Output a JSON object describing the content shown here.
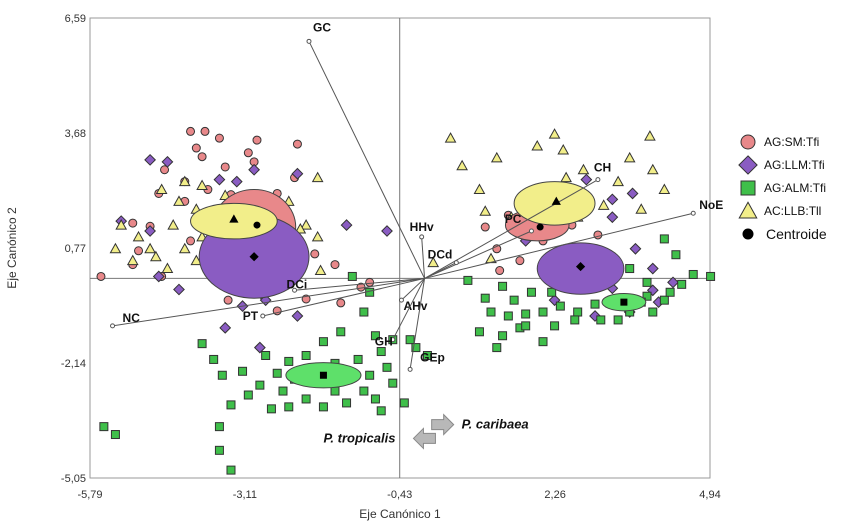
{
  "chart_data": {
    "type": "scatter",
    "xlabel": "Eje Canónico 1",
    "ylabel": "Eje Canónico 2",
    "xlim": [
      -5.79,
      4.94
    ],
    "ylim": [
      -5.05,
      6.59
    ],
    "xticks": [
      "-5,79",
      "-3,11",
      "-0,43",
      "2,26",
      "4,94"
    ],
    "yticks": [
      "6,59",
      "3,68",
      "0,77",
      "-2,14",
      "-5,05"
    ],
    "xtick_values": [
      -5.79,
      -3.11,
      -0.43,
      2.26,
      4.94
    ],
    "ytick_values": [
      6.59,
      3.68,
      0.77,
      -2.14,
      -5.05
    ],
    "grid": false,
    "legend_position": "right",
    "origin_lines": {
      "x": -0.43,
      "y": 0
    },
    "series": [
      {
        "name": "AG:SM:Tfi",
        "marker": "circle",
        "color": "#e8888a",
        "points": [
          [
            -4.05,
            3.72
          ],
          [
            -3.8,
            3.72
          ],
          [
            -3.55,
            3.55
          ],
          [
            -3.85,
            3.08
          ],
          [
            -3.05,
            3.18
          ],
          [
            -3.45,
            2.82
          ],
          [
            -2.9,
            3.5
          ],
          [
            -2.2,
            3.4
          ],
          [
            -4.5,
            2.75
          ],
          [
            -4.15,
            2.45
          ],
          [
            -3.75,
            2.25
          ],
          [
            -4.15,
            1.95
          ],
          [
            -3.35,
            2.12
          ],
          [
            -2.55,
            2.15
          ],
          [
            -3.25,
            1.6
          ],
          [
            -2.5,
            1.15
          ],
          [
            -5.05,
            1.4
          ],
          [
            -4.75,
            1.32
          ],
          [
            -4.05,
            0.95
          ],
          [
            -3.65,
            0.8
          ],
          [
            -2.7,
            0.45
          ],
          [
            -1.9,
            0.62
          ],
          [
            -1.55,
            0.35
          ],
          [
            -5.6,
            0.05
          ],
          [
            -5.05,
            0.35
          ],
          [
            -4.55,
            0.05
          ],
          [
            -4.95,
            0.7
          ],
          [
            -3.05,
            -0.15
          ],
          [
            -2.8,
            -0.42
          ],
          [
            -2.55,
            -0.82
          ],
          [
            -2.05,
            -0.52
          ],
          [
            -1.45,
            -0.62
          ],
          [
            -1.1,
            -0.22
          ],
          [
            -2.55,
            -0.18
          ],
          [
            -3.4,
            -0.55
          ],
          [
            -0.95,
            -0.1
          ],
          [
            -2.25,
            2.55
          ],
          [
            -4.6,
            2.15
          ],
          [
            -3.95,
            3.3
          ],
          [
            -2.95,
            2.95
          ],
          [
            -3.1,
            1.35
          ],
          [
            1.45,
            1.6
          ],
          [
            1.8,
            1.2
          ],
          [
            2.05,
            0.95
          ],
          [
            2.55,
            1.35
          ],
          [
            3.0,
            1.1
          ],
          [
            2.25,
            2.3
          ],
          [
            2.75,
            2.05
          ],
          [
            1.25,
            0.75
          ],
          [
            1.65,
            0.45
          ],
          [
            2.05,
            0.2
          ],
          [
            1.3,
            0.2
          ],
          [
            1.05,
            1.3
          ],
          [
            2.35,
            0.7
          ]
        ]
      },
      {
        "name": "AG:LLM:Tfi",
        "marker": "diamond",
        "color": "#8a5cc2",
        "points": [
          [
            -4.75,
            3.0
          ],
          [
            -4.45,
            2.95
          ],
          [
            -3.55,
            2.5
          ],
          [
            -3.25,
            2.45
          ],
          [
            -2.95,
            2.75
          ],
          [
            -2.2,
            2.65
          ],
          [
            -3.5,
            1.6
          ],
          [
            -3.25,
            1.3
          ],
          [
            -2.7,
            1.05
          ],
          [
            -5.25,
            1.45
          ],
          [
            -4.75,
            1.2
          ],
          [
            -3.8,
            0.45
          ],
          [
            -2.35,
            0.85
          ],
          [
            -4.6,
            0.05
          ],
          [
            -4.25,
            -0.28
          ],
          [
            -2.75,
            -0.55
          ],
          [
            -3.45,
            -1.25
          ],
          [
            -2.85,
            -1.75
          ],
          [
            -3.15,
            -0.7
          ],
          [
            -2.2,
            -0.95
          ],
          [
            -1.35,
            1.35
          ],
          [
            -0.65,
            1.2
          ],
          [
            1.6,
            1.25
          ],
          [
            1.95,
            1.75
          ],
          [
            2.8,
            2.5
          ],
          [
            3.25,
            2.0
          ],
          [
            3.6,
            2.15
          ],
          [
            3.25,
            1.55
          ],
          [
            3.05,
            0.35
          ],
          [
            3.65,
            0.75
          ],
          [
            3.95,
            0.25
          ],
          [
            4.3,
            -0.1
          ],
          [
            3.95,
            -0.3
          ],
          [
            3.45,
            -0.55
          ],
          [
            2.95,
            -0.95
          ],
          [
            4.05,
            -0.6
          ],
          [
            3.55,
            -0.85
          ],
          [
            1.75,
            0.95
          ],
          [
            3.25,
            -0.25
          ],
          [
            2.25,
            -0.55
          ]
        ]
      },
      {
        "name": "AG:ALM:Tfi",
        "marker": "square",
        "color": "#3fbf4a",
        "points": [
          [
            -1.25,
            0.05
          ],
          [
            -0.95,
            -0.35
          ],
          [
            -1.05,
            -0.85
          ],
          [
            -0.85,
            -1.45
          ],
          [
            -1.45,
            -1.35
          ],
          [
            -1.75,
            -1.6
          ],
          [
            -2.05,
            -1.95
          ],
          [
            -1.55,
            -2.15
          ],
          [
            -1.15,
            -2.05
          ],
          [
            -0.75,
            -1.85
          ],
          [
            -0.55,
            -1.55
          ],
          [
            -0.25,
            -1.55
          ],
          [
            -0.15,
            -1.75
          ],
          [
            0.05,
            -1.95
          ],
          [
            -0.65,
            -2.25
          ],
          [
            -0.95,
            -2.45
          ],
          [
            -0.55,
            -2.65
          ],
          [
            -1.35,
            -2.55
          ],
          [
            -1.55,
            -2.85
          ],
          [
            -1.95,
            -2.35
          ],
          [
            -2.25,
            -2.55
          ],
          [
            -2.55,
            -2.4
          ],
          [
            -2.85,
            -2.7
          ],
          [
            -3.15,
            -2.35
          ],
          [
            -3.5,
            -2.45
          ],
          [
            -3.65,
            -2.05
          ],
          [
            -2.75,
            -1.95
          ],
          [
            -2.45,
            -2.85
          ],
          [
            -2.05,
            -3.05
          ],
          [
            -1.75,
            -3.25
          ],
          [
            -1.35,
            -3.15
          ],
          [
            -0.85,
            -3.05
          ],
          [
            -1.05,
            -2.85
          ],
          [
            -2.35,
            -3.25
          ],
          [
            -2.65,
            -3.3
          ],
          [
            -3.35,
            -3.2
          ],
          [
            -3.05,
            -2.95
          ],
          [
            -0.75,
            -3.35
          ],
          [
            -1.95,
            -2.6
          ],
          [
            -2.35,
            -2.1
          ],
          [
            -5.55,
            -3.75
          ],
          [
            -5.35,
            -3.95
          ],
          [
            -3.55,
            -4.35
          ],
          [
            -3.35,
            -4.85
          ],
          [
            -3.55,
            -3.75
          ],
          [
            -0.35,
            -3.15
          ],
          [
            -3.85,
            -1.65
          ],
          [
            4.15,
            1.0
          ],
          [
            4.35,
            0.6
          ],
          [
            4.65,
            0.1
          ],
          [
            4.45,
            -0.15
          ],
          [
            4.95,
            0.05
          ],
          [
            3.85,
            -0.1
          ],
          [
            3.55,
            -0.85
          ],
          [
            3.35,
            -1.05
          ],
          [
            3.05,
            -1.05
          ],
          [
            2.65,
            -0.85
          ],
          [
            2.35,
            -0.7
          ],
          [
            2.05,
            -0.85
          ],
          [
            1.75,
            -0.9
          ],
          [
            1.45,
            -0.95
          ],
          [
            1.15,
            -0.85
          ],
          [
            1.55,
            -0.55
          ],
          [
            1.85,
            -0.35
          ],
          [
            2.2,
            -0.35
          ],
          [
            2.55,
            -0.25
          ],
          [
            3.85,
            -0.45
          ],
          [
            4.15,
            -0.55
          ],
          [
            1.35,
            -1.45
          ],
          [
            1.65,
            -1.25
          ],
          [
            2.25,
            -1.2
          ],
          [
            2.6,
            -1.05
          ],
          [
            3.25,
            -0.55
          ],
          [
            2.05,
            -1.6
          ],
          [
            1.25,
            -1.75
          ],
          [
            0.95,
            -1.35
          ],
          [
            1.05,
            -0.5
          ],
          [
            1.35,
            -0.2
          ],
          [
            3.95,
            -0.85
          ],
          [
            0.75,
            -0.05
          ],
          [
            3.55,
            0.25
          ],
          [
            1.75,
            -1.2
          ],
          [
            2.95,
            -0.65
          ],
          [
            3.75,
            -0.6
          ],
          [
            4.25,
            -0.35
          ]
        ]
      },
      {
        "name": "AC:LLB:Tll",
        "marker": "triangle",
        "color": "#f2ee8a",
        "points": [
          [
            -4.15,
            2.45
          ],
          [
            -3.85,
            2.35
          ],
          [
            -3.45,
            2.1
          ],
          [
            -4.55,
            2.25
          ],
          [
            -4.25,
            1.95
          ],
          [
            -3.95,
            1.75
          ],
          [
            -2.55,
            1.95
          ],
          [
            -2.35,
            1.95
          ],
          [
            -3.25,
            1.85
          ],
          [
            -2.35,
            1.55
          ],
          [
            -1.85,
            2.55
          ],
          [
            -2.05,
            1.35
          ],
          [
            -1.85,
            1.05
          ],
          [
            -2.3,
            0.85
          ],
          [
            -5.25,
            1.35
          ],
          [
            -4.95,
            1.05
          ],
          [
            -5.35,
            0.75
          ],
          [
            -4.65,
            0.55
          ],
          [
            -4.75,
            0.75
          ],
          [
            -5.05,
            0.45
          ],
          [
            -4.35,
            1.35
          ],
          [
            -4.15,
            0.75
          ],
          [
            -3.85,
            1.05
          ],
          [
            -3.95,
            0.45
          ],
          [
            -4.45,
            0.25
          ],
          [
            -3.55,
            0.15
          ],
          [
            -2.55,
            0.95
          ],
          [
            -2.15,
            1.25
          ],
          [
            -3.0,
            0.95
          ],
          [
            -3.15,
            0.45
          ],
          [
            -2.8,
            0.35
          ],
          [
            -1.8,
            0.2
          ],
          [
            0.15,
            0.4
          ],
          [
            0.95,
            2.25
          ],
          [
            0.65,
            2.85
          ],
          [
            1.25,
            3.05
          ],
          [
            1.95,
            3.35
          ],
          [
            2.25,
            3.65
          ],
          [
            2.75,
            2.75
          ],
          [
            3.35,
            2.45
          ],
          [
            3.55,
            3.05
          ],
          [
            3.95,
            2.75
          ],
          [
            4.15,
            2.25
          ],
          [
            3.75,
            1.75
          ],
          [
            2.65,
            1.55
          ],
          [
            1.05,
            1.7
          ],
          [
            0.45,
            3.55
          ],
          [
            1.75,
            2.05
          ],
          [
            2.05,
            1.25
          ],
          [
            1.15,
            0.5
          ],
          [
            3.1,
            1.85
          ],
          [
            2.4,
            3.25
          ],
          [
            3.9,
            3.6
          ],
          [
            2.45,
            2.55
          ],
          [
            1.5,
            1.55
          ]
        ]
      }
    ],
    "ellipses": [
      {
        "group": "AG:SM:Tfi",
        "color": "#e8888a",
        "cx": -2.95,
        "cy": 1.3,
        "rx": 0.72,
        "ry": 0.95
      },
      {
        "group": "AG:LLM:Tfi",
        "color": "#8a5cc2",
        "cx": -2.95,
        "cy": 0.55,
        "rx": 0.95,
        "ry": 1.05
      },
      {
        "group": "AC:LLB:Tll",
        "color": "#f2ee8a",
        "cx": -3.3,
        "cy": 1.45,
        "rx": 0.75,
        "ry": 0.45
      },
      {
        "group": "AG:SM:Tfi",
        "color": "#e8888a",
        "cx": 1.95,
        "cy": 1.35,
        "rx": 0.55,
        "ry": 0.4
      },
      {
        "group": "AC:LLB:Tll",
        "color": "#f2ee8a",
        "cx": 2.25,
        "cy": 1.9,
        "rx": 0.7,
        "ry": 0.55
      },
      {
        "group": "AG:LLM:Tfi",
        "color": "#8a5cc2",
        "cx": 2.7,
        "cy": 0.25,
        "rx": 0.75,
        "ry": 0.65
      },
      {
        "group": "AG:ALM:Tfi",
        "color": "#5ee06a",
        "cx": 3.45,
        "cy": -0.6,
        "rx": 0.38,
        "ry": 0.22
      },
      {
        "group": "AG:ALM:Tfi",
        "color": "#5ee06a",
        "cx": -1.75,
        "cy": -2.45,
        "rx": 0.65,
        "ry": 0.32
      }
    ],
    "centroids": [
      {
        "group": "AG:SM:Tfi",
        "marker": "circle",
        "x": -2.9,
        "y": 1.35
      },
      {
        "group": "AG:LLM:Tfi",
        "marker": "diamond",
        "x": -2.95,
        "y": 0.55
      },
      {
        "group": "AC:LLB:Tll",
        "marker": "triangle",
        "x": -3.3,
        "y": 1.5
      },
      {
        "group": "AG:SM:Tfi",
        "marker": "circle",
        "x": 2.0,
        "y": 1.3
      },
      {
        "group": "AC:LLB:Tll",
        "marker": "triangle",
        "x": 2.28,
        "y": 1.95
      },
      {
        "group": "AG:LLM:Tfi",
        "marker": "diamond",
        "x": 2.7,
        "y": 0.3
      },
      {
        "group": "AG:ALM:Tfi",
        "marker": "square",
        "x": 3.45,
        "y": -0.6
      },
      {
        "group": "AG:ALM:Tfi",
        "marker": "square",
        "x": -1.75,
        "y": -2.45
      }
    ],
    "vectors": [
      {
        "label": "GC",
        "x": -2.0,
        "y": 6.0
      },
      {
        "label": "NoE",
        "x": 4.65,
        "y": 1.65
      },
      {
        "label": "CH",
        "x": 3.0,
        "y": 2.5
      },
      {
        "label": "PC",
        "x": 1.85,
        "y": 1.2
      },
      {
        "label": "HHv",
        "x": -0.05,
        "y": 1.05
      },
      {
        "label": "DCd",
        "x": 0.55,
        "y": 0.4
      },
      {
        "label": "DCi",
        "x": -2.25,
        "y": -0.3
      },
      {
        "label": "PT",
        "x": -2.8,
        "y": -0.95
      },
      {
        "label": "NC",
        "x": -5.4,
        "y": -1.2
      },
      {
        "label": "AHv",
        "x": -0.4,
        "y": -0.55
      },
      {
        "label": "GH",
        "x": -0.55,
        "y": -1.55
      },
      {
        "label": "GEp",
        "x": -0.25,
        "y": -2.3
      }
    ],
    "legend": [
      {
        "label": "AG:SM:Tfi",
        "marker": "circle",
        "color": "#e8888a"
      },
      {
        "label": "AG:LLM:Tfi",
        "marker": "diamond",
        "color": "#8a5cc2"
      },
      {
        "label": "AG:ALM:Tfi",
        "marker": "square",
        "color": "#3fbf4a"
      },
      {
        "label": "AC:LLB:Tll",
        "marker": "triangle",
        "color": "#f2ee8a"
      },
      {
        "label": "Centroide",
        "marker": "centroid",
        "color": "#000000"
      }
    ],
    "annotations": [
      {
        "text": "P. tropicalis",
        "arrow": "left",
        "x": -1.75,
        "y": -4.15
      },
      {
        "text": "P. caribaea",
        "arrow": "right",
        "x": 0.85,
        "y": -3.8
      }
    ]
  }
}
